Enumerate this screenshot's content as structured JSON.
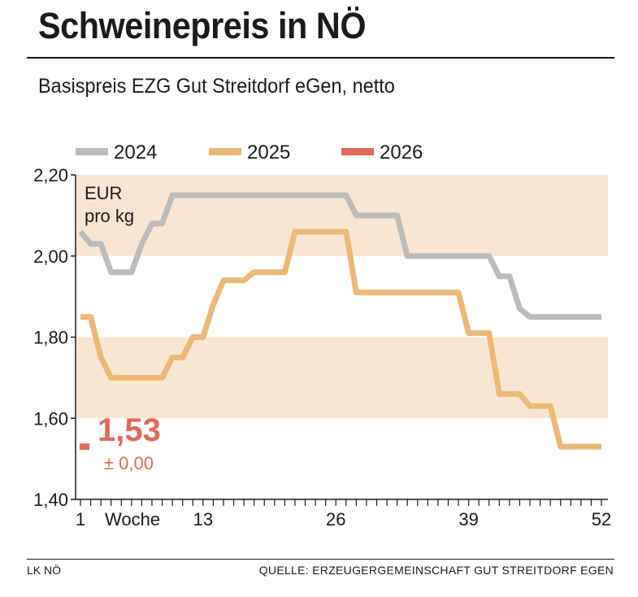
{
  "title": "Schweinepreis in NÖ",
  "subtitle": "Basispreis EZG Gut Streitdorf eGen, netto",
  "footer": {
    "left": "LK NÖ",
    "right": "QUELLE: ERZEUGERGEMEINSCHAFT GUT STREITDORF EGEN"
  },
  "colors": {
    "series_2024": "#bdbbb8",
    "series_2025": "#ebb876",
    "series_2026": "#e06a55",
    "band": "#f8e6d3",
    "text": "#1a1a1a"
  },
  "chart_data": {
    "type": "line",
    "title": "Schweinepreis in NÖ",
    "unit_label": [
      "EUR",
      "pro kg"
    ],
    "xlabel": "Woche",
    "x_ticks": [
      "1",
      "13",
      "26",
      "39",
      "52"
    ],
    "y_ticks": [
      "2,20",
      "2,00",
      "1,80",
      "1,60",
      "1,40"
    ],
    "ylim": [
      1.4,
      2.2
    ],
    "xlim": [
      1,
      52
    ],
    "legend": [
      "2024",
      "2025",
      "2026"
    ],
    "legend_position": "top",
    "shaded_bands": [
      [
        2.0,
        2.2
      ],
      [
        1.6,
        1.8
      ]
    ],
    "series": [
      {
        "name": "2024",
        "weeks": [
          1,
          2,
          3,
          4,
          5,
          6,
          7,
          8,
          9,
          10,
          11,
          12,
          13,
          14,
          15,
          16,
          17,
          18,
          19,
          20,
          21,
          22,
          23,
          24,
          25,
          26,
          27,
          28,
          29,
          30,
          31,
          32,
          33,
          34,
          35,
          36,
          37,
          38,
          39,
          40,
          41,
          42,
          43,
          44,
          45,
          46,
          47,
          48,
          49,
          50,
          51,
          52
        ],
        "values": [
          2.06,
          2.03,
          2.03,
          1.96,
          1.96,
          1.96,
          2.03,
          2.08,
          2.08,
          2.15,
          2.15,
          2.15,
          2.15,
          2.15,
          2.15,
          2.15,
          2.15,
          2.15,
          2.15,
          2.15,
          2.15,
          2.15,
          2.15,
          2.15,
          2.15,
          2.15,
          2.15,
          2.1,
          2.1,
          2.1,
          2.1,
          2.1,
          2.0,
          2.0,
          2.0,
          2.0,
          2.0,
          2.0,
          2.0,
          2.0,
          2.0,
          1.95,
          1.95,
          1.87,
          1.85,
          1.85,
          1.85,
          1.85,
          1.85,
          1.85,
          1.85,
          1.85
        ]
      },
      {
        "name": "2025",
        "weeks": [
          1,
          2,
          3,
          4,
          5,
          6,
          7,
          8,
          9,
          10,
          11,
          12,
          13,
          14,
          15,
          16,
          17,
          18,
          19,
          20,
          21,
          22,
          23,
          24,
          25,
          26,
          27,
          28,
          29,
          30,
          31,
          32,
          33,
          34,
          35,
          36,
          37,
          38,
          39,
          40,
          41,
          42,
          43,
          44,
          45,
          46,
          47,
          48,
          49,
          50,
          51,
          52
        ],
        "values": [
          1.85,
          1.85,
          1.75,
          1.7,
          1.7,
          1.7,
          1.7,
          1.7,
          1.7,
          1.75,
          1.75,
          1.8,
          1.8,
          1.88,
          1.94,
          1.94,
          1.94,
          1.96,
          1.96,
          1.96,
          1.96,
          2.06,
          2.06,
          2.06,
          2.06,
          2.06,
          2.06,
          1.91,
          1.91,
          1.91,
          1.91,
          1.91,
          1.91,
          1.91,
          1.91,
          1.91,
          1.91,
          1.91,
          1.81,
          1.81,
          1.81,
          1.66,
          1.66,
          1.66,
          1.63,
          1.63,
          1.63,
          1.53,
          1.53,
          1.53,
          1.53,
          1.53
        ]
      },
      {
        "name": "2026",
        "weeks": [
          1
        ],
        "values": [
          1.53
        ]
      }
    ],
    "annotation": {
      "value": "1,53",
      "change": "± 0,00"
    }
  }
}
